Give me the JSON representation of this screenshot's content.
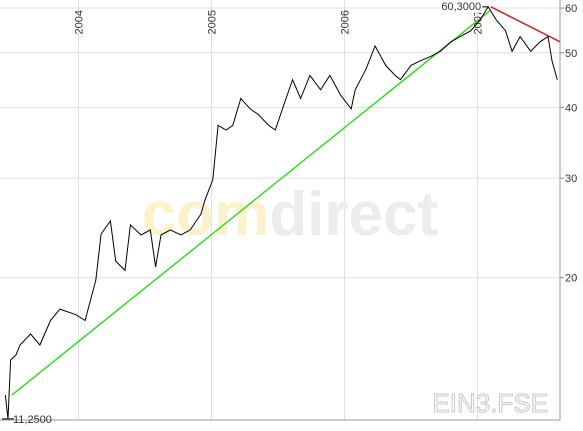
{
  "chart_data": {
    "type": "line",
    "log_scale": true,
    "grid": true,
    "watermark": [
      "com",
      "direct"
    ],
    "symbol": "EIN3.FSE",
    "xlim": [
      2003.41,
      2007.62
    ],
    "xticks": [
      2004,
      2005,
      2006,
      2007
    ],
    "ylim": [
      11.2,
      62
    ],
    "yticks": [
      20,
      30,
      40,
      50,
      60
    ],
    "x": [
      2003.45,
      2003.47,
      2003.49,
      2003.53,
      2003.56,
      2003.64,
      2003.71,
      2003.79,
      2003.86,
      2003.98,
      2004.05,
      2004.13,
      2004.17,
      2004.24,
      2004.28,
      2004.35,
      2004.39,
      2004.47,
      2004.54,
      2004.58,
      2004.62,
      2004.69,
      2004.77,
      2004.84,
      2004.92,
      2004.95,
      2005.01,
      2005.05,
      2005.11,
      2005.16,
      2005.22,
      2005.29,
      2005.35,
      2005.43,
      2005.48,
      2005.56,
      2005.61,
      2005.67,
      2005.74,
      2005.82,
      2005.89,
      2005.97,
      2006.05,
      2006.08,
      2006.16,
      2006.23,
      2006.31,
      2006.38,
      2006.42,
      2006.5,
      2006.57,
      2006.65,
      2006.72,
      2006.8,
      2006.87,
      2006.95,
      2007.02,
      2007.08,
      2007.14,
      2007.21,
      2007.26,
      2007.32,
      2007.4,
      2007.47,
      2007.53,
      2007.56,
      2007.6
    ],
    "series": [
      {
        "color": "#000000",
        "values": [
          12.4,
          11.25,
          14.3,
          14.6,
          15.2,
          15.9,
          15.2,
          16.8,
          17.6,
          17.2,
          16.8,
          19.8,
          23.9,
          25.2,
          21.4,
          20.6,
          24.8,
          23.8,
          24.3,
          20.9,
          23.8,
          24.3,
          23.8,
          24.3,
          25.9,
          27.4,
          29.8,
          37.2,
          36.5,
          37.2,
          41.5,
          39.8,
          38.9,
          37.2,
          36.5,
          41.5,
          44.8,
          41.5,
          45.6,
          43,
          45.6,
          42.1,
          39.8,
          43,
          46.7,
          51.4,
          47.5,
          45.6,
          44.8,
          47.5,
          48.4,
          49.3,
          50.3,
          52.3,
          53.4,
          54.7,
          57.2,
          60.3,
          57.2,
          54.7,
          50.3,
          53.4,
          50.3,
          52.3,
          53.4,
          48.4,
          44.8
        ]
      }
    ],
    "trendlines": [
      {
        "color": "#33dd22",
        "x": [
          2003.5,
          2007.1
        ],
        "values": [
          12.4,
          59.5
        ]
      },
      {
        "color": "#dd2222",
        "x": [
          2007.1,
          2007.62
        ],
        "values": [
          60.3,
          52.3
        ]
      }
    ],
    "annotations": [
      {
        "x": 2007.08,
        "value": 60.3,
        "label": "60,3000",
        "side": "left"
      },
      {
        "x": 2003.47,
        "value": 11.25,
        "label": "11,2500",
        "side": "right"
      }
    ]
  }
}
